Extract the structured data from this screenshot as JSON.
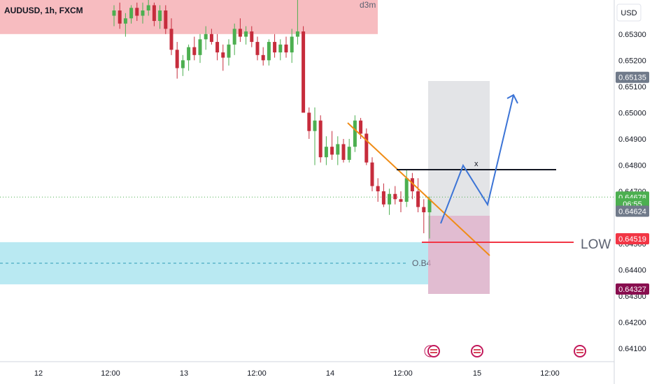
{
  "header": {
    "symbol": "AUDUSD, 1h, FXCM"
  },
  "price_axis": {
    "currency": "USD"
  },
  "chart_data": {
    "type": "candlestick",
    "symbol": "AUDUSD",
    "interval": "1h",
    "source": "FXCM",
    "ylim": [
      0.6405,
      0.6543
    ],
    "y_ticks": [
      "0.65300",
      "0.65200",
      "0.65100",
      "0.65000",
      "0.64900",
      "0.64800",
      "0.64700",
      "0.64500",
      "0.64400",
      "0.64300",
      "0.64200",
      "0.64100"
    ],
    "x_ticks": [
      "12",
      "12:00",
      "13",
      "12:00",
      "14",
      "12:00",
      "15",
      "12:00"
    ],
    "price_labels": [
      {
        "text": "0.65135",
        "value": 0.65135,
        "bg": "#707a8a",
        "fg": "#ffffff"
      },
      {
        "text": "0.64678",
        "value": 0.64678,
        "bg": "#4caf50",
        "fg": "#ffffff"
      },
      {
        "text": "06:55",
        "value": 0.64652,
        "bg": "#4caf50",
        "fg": "#ffffff"
      },
      {
        "text": "0.64624",
        "value": 0.64624,
        "bg": "#707a8a",
        "fg": "#ffffff"
      },
      {
        "text": "0.64519",
        "value": 0.64519,
        "bg": "#f23645",
        "fg": "#ffffff"
      },
      {
        "text": "0.64327",
        "value": 0.64327,
        "bg": "#880e4f",
        "fg": "#ffffff"
      }
    ],
    "zones": [
      {
        "name": "supply-zone",
        "label": "d3m",
        "top": 0.6543,
        "bottom": 0.653,
        "color": "#f7bcc0"
      },
      {
        "name": "order-block-zone",
        "label": "O.B4",
        "top": 0.64506,
        "bottom": 0.64345,
        "color": "#b9e9f2"
      }
    ],
    "annotations": {
      "low_label": "LOW",
      "x_label": "x"
    },
    "colors": {
      "up": "#4caf50",
      "down": "#c62c3c",
      "trendline": "#f08c16",
      "projection": "#3c74d6",
      "resistance": "#131722",
      "low_line": "#f23645"
    },
    "candles": [
      [
        0.6537,
        0.6541,
        0.6533,
        0.6539
      ],
      [
        0.6539,
        0.6542,
        0.6532,
        0.6534
      ],
      [
        0.6534,
        0.6538,
        0.6529,
        0.6536
      ],
      [
        0.6536,
        0.6541,
        0.6534,
        0.654
      ],
      [
        0.654,
        0.6542,
        0.6535,
        0.6537
      ],
      [
        0.6537,
        0.6542,
        0.6534,
        0.6539
      ],
      [
        0.6539,
        0.6543,
        0.6537,
        0.6541
      ],
      [
        0.6541,
        0.6542,
        0.6533,
        0.6535
      ],
      [
        0.6535,
        0.6541,
        0.6532,
        0.6539
      ],
      [
        0.6539,
        0.6541,
        0.653,
        0.6532
      ],
      [
        0.6532,
        0.6536,
        0.6522,
        0.6524
      ],
      [
        0.6524,
        0.6527,
        0.6513,
        0.6517
      ],
      [
        0.6517,
        0.6522,
        0.6514,
        0.652
      ],
      [
        0.652,
        0.6526,
        0.6516,
        0.6525
      ],
      [
        0.6525,
        0.6529,
        0.652,
        0.6522
      ],
      [
        0.6522,
        0.653,
        0.6519,
        0.6528
      ],
      [
        0.6528,
        0.6533,
        0.6524,
        0.653
      ],
      [
        0.653,
        0.6532,
        0.6526,
        0.6527
      ],
      [
        0.6527,
        0.653,
        0.652,
        0.6523
      ],
      [
        0.6523,
        0.6526,
        0.6516,
        0.6521
      ],
      [
        0.6521,
        0.6528,
        0.6518,
        0.6526
      ],
      [
        0.6526,
        0.6534,
        0.6522,
        0.6532
      ],
      [
        0.6532,
        0.6536,
        0.6527,
        0.6529
      ],
      [
        0.6529,
        0.6533,
        0.6526,
        0.6531
      ],
      [
        0.6531,
        0.6533,
        0.6525,
        0.6527
      ],
      [
        0.6527,
        0.6529,
        0.652,
        0.6522
      ],
      [
        0.6522,
        0.6525,
        0.6518,
        0.652
      ],
      [
        0.652,
        0.6528,
        0.6518,
        0.6527
      ],
      [
        0.6527,
        0.653,
        0.6521,
        0.6523
      ],
      [
        0.6523,
        0.6528,
        0.652,
        0.6526
      ],
      [
        0.6526,
        0.6529,
        0.6521,
        0.6523
      ],
      [
        0.6523,
        0.6532,
        0.6519,
        0.6529
      ],
      [
        0.6529,
        0.6543,
        0.6526,
        0.6531
      ],
      [
        0.6531,
        0.6533,
        0.6501,
        0.65
      ],
      [
        0.65,
        0.6502,
        0.649,
        0.6493
      ],
      [
        0.6493,
        0.6502,
        0.648,
        0.6497
      ],
      [
        0.6497,
        0.6499,
        0.6481,
        0.6483
      ],
      [
        0.6483,
        0.6491,
        0.648,
        0.6487
      ],
      [
        0.6487,
        0.6493,
        0.6482,
        0.6484
      ],
      [
        0.6484,
        0.6491,
        0.648,
        0.6488
      ],
      [
        0.6488,
        0.649,
        0.6481,
        0.6482
      ],
      [
        0.6482,
        0.649,
        0.6481,
        0.6487
      ],
      [
        0.6487,
        0.6499,
        0.6485,
        0.6497
      ],
      [
        0.6497,
        0.6498,
        0.649,
        0.6492
      ],
      [
        0.6492,
        0.6494,
        0.648,
        0.6481
      ],
      [
        0.6481,
        0.6483,
        0.647,
        0.6472
      ],
      [
        0.6472,
        0.6475,
        0.6466,
        0.647
      ],
      [
        0.647,
        0.6473,
        0.6464,
        0.6465
      ],
      [
        0.6465,
        0.6471,
        0.6461,
        0.6469
      ],
      [
        0.6469,
        0.6472,
        0.6465,
        0.6467
      ],
      [
        0.6467,
        0.647,
        0.6462,
        0.6466
      ],
      [
        0.6466,
        0.6478,
        0.6464,
        0.6475
      ],
      [
        0.6475,
        0.6477,
        0.6467,
        0.647
      ],
      [
        0.647,
        0.6475,
        0.6462,
        0.6464
      ],
      [
        0.6464,
        0.6467,
        0.6454,
        0.6462
      ],
      [
        0.6462,
        0.6468,
        0.6452,
        0.6467
      ]
    ]
  }
}
